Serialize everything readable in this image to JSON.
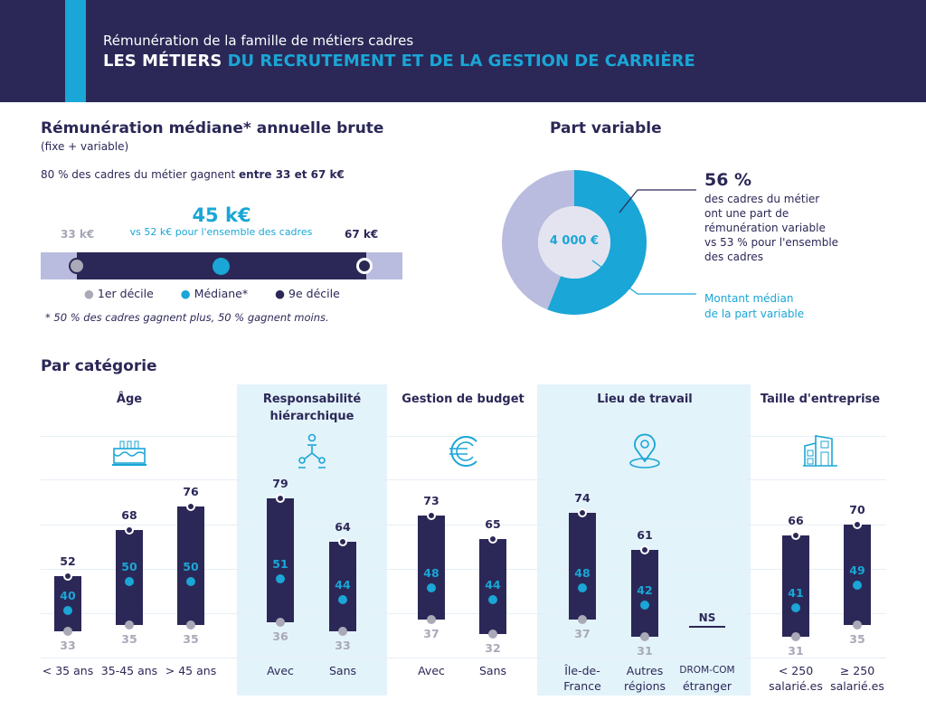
{
  "header": {
    "subtitle": "Rémunération de la famille de métiers cadres",
    "title_bold": "LES MÉTIERS",
    "title_accent": "DU RECRUTEMENT ET DE LA GESTION DE CARRIÈRE"
  },
  "salary": {
    "heading": "Rémunération médiane* annuelle brute",
    "sub": "(fixe + variable)",
    "range_text": "80 % des cadres du métier gagnent ",
    "range_bold": "entre 33 et 67 k€",
    "median": "45 k€",
    "compare": "vs 52 k€ pour l'ensemble des cadres",
    "d1": "33 k€",
    "d9": "67 k€",
    "legend": [
      "1er décile",
      "Médiane*",
      "9e décile"
    ],
    "footnote": "* 50 % des cadres gagnent plus, 50 % gagnent moins.",
    "d1_value": 33,
    "median_value": 45,
    "d9_value": 67
  },
  "variable": {
    "heading": "Part variable",
    "pct": "56 %",
    "pct_value": 56,
    "desc": [
      "des cadres du métier",
      "ont une part de",
      "rémunération variable",
      "vs 53 % pour l'ensemble",
      "des cadres"
    ],
    "center": "4 000 €",
    "note": [
      "Montant médian",
      "de la part variable"
    ]
  },
  "categories": {
    "heading": "Par catégorie",
    "groups": [
      {
        "title": [
          "Âge"
        ],
        "icon": "birthday-cake-icon",
        "items": [
          {
            "label": [
              "< 35 ans"
            ],
            "d1": 33,
            "med": 40,
            "d9": 52
          },
          {
            "label": [
              "35-45 ans"
            ],
            "d1": 35,
            "med": 50,
            "d9": 68
          },
          {
            "label": [
              "> 45 ans"
            ],
            "d1": 35,
            "med": 50,
            "d9": 76
          }
        ]
      },
      {
        "title": [
          "Responsabilité",
          "hiérarchique"
        ],
        "icon": "hierarchy-icon",
        "items": [
          {
            "label": [
              "Avec"
            ],
            "d1": 36,
            "med": 51,
            "d9": 79
          },
          {
            "label": [
              "Sans"
            ],
            "d1": 33,
            "med": 44,
            "d9": 64
          }
        ]
      },
      {
        "title": [
          "Gestion de budget"
        ],
        "icon": "euro-icon",
        "items": [
          {
            "label": [
              "Avec"
            ],
            "d1": 37,
            "med": 48,
            "d9": 73
          },
          {
            "label": [
              "Sans"
            ],
            "d1": 32,
            "med": 44,
            "d9": 65
          }
        ]
      },
      {
        "title": [
          "Lieu de travail"
        ],
        "icon": "location-pin-icon",
        "items": [
          {
            "label": [
              "Île-de-",
              "France"
            ],
            "d1": 37,
            "med": 48,
            "d9": 74
          },
          {
            "label": [
              "Autres",
              "régions"
            ],
            "d1": 31,
            "med": 42,
            "d9": 61
          },
          {
            "label": [
              "DROM-COM",
              "étranger"
            ],
            "ns": "NS"
          }
        ]
      },
      {
        "title": [
          "Taille d'entreprise"
        ],
        "icon": "buildings-icon",
        "items": [
          {
            "label": [
              "< 250",
              "salarié.es"
            ],
            "d1": 31,
            "med": 41,
            "d9": 66
          },
          {
            "label": [
              "≥ 250",
              "salarié.es"
            ],
            "d1": 35,
            "med": 49,
            "d9": 70
          }
        ]
      }
    ]
  },
  "colors": {
    "navy": "#2b2857",
    "cyan": "#1aa6d6",
    "grey": "#b9bcde",
    "panel": "#e3f3fa"
  }
}
